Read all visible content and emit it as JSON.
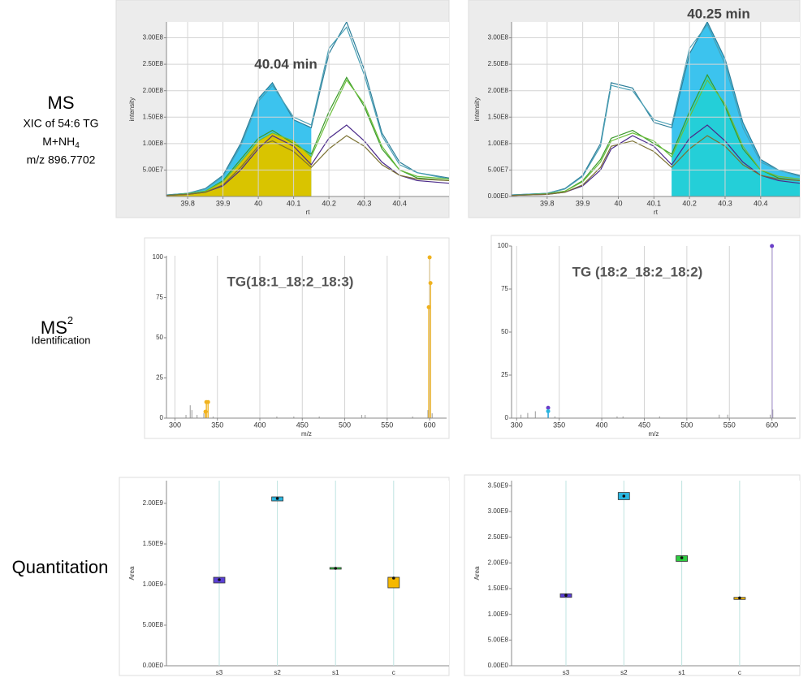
{
  "labels": {
    "ms": {
      "title": "MS",
      "xic": "XIC of 54:6 TG",
      "adduct": {
        "text": "M+NH",
        "sub": "4"
      },
      "mz": "m/z 896.7702"
    },
    "ms2": {
      "title": "MS",
      "sup": "2",
      "sub": "Identification"
    },
    "quant": "Quantitation"
  },
  "chart_data": [
    {
      "type": "line",
      "annotation": "40.04 min",
      "x_label": "rt",
      "y_label": "intensity",
      "x": [
        39.74,
        39.8,
        39.85,
        39.9,
        39.95,
        40.0,
        40.04,
        40.1,
        40.15,
        40.2,
        40.25,
        40.3,
        40.35,
        40.4,
        40.45,
        40.54
      ],
      "series": [
        {
          "color": "#2e7f9a",
          "fill": "#3cc3ee",
          "values": [
            3000000.0,
            6000000.0,
            15000000.0,
            40000000.0,
            100000000.0,
            185000000.0,
            215000000.0,
            145000000.0,
            130000000.0,
            270000000.0,
            330000000.0,
            240000000.0,
            120000000.0,
            65000000.0,
            45000000.0,
            35000000.0
          ]
        },
        {
          "color": "#4aa0b5",
          "values": [
            3000000.0,
            6000000.0,
            14000000.0,
            38000000.0,
            95000000.0,
            180000000.0,
            210000000.0,
            150000000.0,
            135000000.0,
            280000000.0,
            320000000.0,
            230000000.0,
            115000000.0,
            60000000.0,
            45000000.0,
            33000000.0
          ]
        },
        {
          "color": "#3a9a2a",
          "values": [
            2000000.0,
            5000000.0,
            10000000.0,
            30000000.0,
            70000000.0,
            110000000.0,
            125000000.0,
            100000000.0,
            80000000.0,
            160000000.0,
            225000000.0,
            170000000.0,
            90000000.0,
            50000000.0,
            35000000.0,
            30000000.0
          ]
        },
        {
          "color": "#6cbf3c",
          "fill": "#d9c400",
          "values": [
            2000000.0,
            5000000.0,
            10000000.0,
            28000000.0,
            65000000.0,
            105000000.0,
            120000000.0,
            105000000.0,
            75000000.0,
            150000000.0,
            220000000.0,
            175000000.0,
            95000000.0,
            50000000.0,
            38000000.0,
            33000000.0
          ]
        },
        {
          "color": "#4b2a8a",
          "values": [
            2000000.0,
            4000000.0,
            8000000.0,
            20000000.0,
            50000000.0,
            90000000.0,
            115000000.0,
            95000000.0,
            60000000.0,
            110000000.0,
            135000000.0,
            105000000.0,
            65000000.0,
            40000000.0,
            30000000.0,
            25000000.0
          ]
        },
        {
          "color": "#7a7030",
          "values": [
            2000000.0,
            4000000.0,
            8000000.0,
            22000000.0,
            55000000.0,
            95000000.0,
            105000000.0,
            85000000.0,
            55000000.0,
            90000000.0,
            115000000.0,
            95000000.0,
            60000000.0,
            40000000.0,
            33000000.0,
            30000000.0
          ]
        }
      ],
      "integration": [
        39.74,
        40.15
      ],
      "xlim": [
        39.74,
        40.54
      ],
      "xticks": [
        39.8,
        39.9,
        40,
        40.1,
        40.2,
        40.3,
        40.4
      ],
      "ylim": [
        0,
        330000000.0
      ],
      "yticks": [
        {
          "value": 50000000.0,
          "label": "5.00E7"
        },
        {
          "value": 100000000.0,
          "label": "1.00E8"
        },
        {
          "value": 150000000.0,
          "label": "1.50E8"
        },
        {
          "value": 200000000.0,
          "label": "2.00E8"
        },
        {
          "value": 250000000.0,
          "label": "2.50E8"
        },
        {
          "value": 300000000.0,
          "label": "3.00E8"
        }
      ],
      "grid": {
        "x": true,
        "y": true
      }
    },
    {
      "type": "line",
      "annotation": "40.25 min",
      "x_label": "rt",
      "y_label": "intensity",
      "x": [
        39.7,
        39.8,
        39.85,
        39.9,
        39.95,
        39.98,
        40.04,
        40.1,
        40.15,
        40.2,
        40.25,
        40.3,
        40.35,
        40.4,
        40.45,
        40.51
      ],
      "series": [
        {
          "color": "#2e7f9a",
          "fill": "#3cc3ee",
          "values": [
            3000000.0,
            6000000.0,
            15000000.0,
            40000000.0,
            100000000.0,
            215000000.0,
            205000000.0,
            140000000.0,
            130000000.0,
            270000000.0,
            330000000.0,
            260000000.0,
            140000000.0,
            70000000.0,
            50000000.0,
            40000000.0
          ]
        },
        {
          "color": "#4aa0b5",
          "values": [
            3000000.0,
            6000000.0,
            14000000.0,
            38000000.0,
            95000000.0,
            210000000.0,
            200000000.0,
            145000000.0,
            135000000.0,
            280000000.0,
            325000000.0,
            250000000.0,
            130000000.0,
            65000000.0,
            50000000.0,
            38000000.0
          ]
        },
        {
          "color": "#3a9a2a",
          "fill": "#24cfd8",
          "values": [
            2000000.0,
            5000000.0,
            10000000.0,
            30000000.0,
            70000000.0,
            110000000.0,
            125000000.0,
            100000000.0,
            80000000.0,
            160000000.0,
            230000000.0,
            170000000.0,
            90000000.0,
            50000000.0,
            35000000.0,
            30000000.0
          ]
        },
        {
          "color": "#6cbf3c",
          "values": [
            2000000.0,
            5000000.0,
            10000000.0,
            28000000.0,
            65000000.0,
            105000000.0,
            120000000.0,
            105000000.0,
            75000000.0,
            150000000.0,
            220000000.0,
            175000000.0,
            95000000.0,
            50000000.0,
            38000000.0,
            33000000.0
          ]
        },
        {
          "color": "#4b2a8a",
          "values": [
            2000000.0,
            4000000.0,
            8000000.0,
            20000000.0,
            50000000.0,
            90000000.0,
            115000000.0,
            95000000.0,
            60000000.0,
            110000000.0,
            135000000.0,
            105000000.0,
            65000000.0,
            40000000.0,
            30000000.0,
            25000000.0
          ]
        },
        {
          "color": "#7a7030",
          "values": [
            2000000.0,
            4000000.0,
            8000000.0,
            22000000.0,
            55000000.0,
            95000000.0,
            105000000.0,
            85000000.0,
            55000000.0,
            90000000.0,
            115000000.0,
            95000000.0,
            60000000.0,
            40000000.0,
            33000000.0,
            30000000.0
          ]
        }
      ],
      "integration": [
        40.15,
        40.51
      ],
      "xlim": [
        39.7,
        40.51
      ],
      "xticks": [
        39.8,
        39.9,
        40,
        40.1,
        40.2,
        40.3,
        40.4
      ],
      "ylim": [
        0,
        330000000.0
      ],
      "yticks": [
        {
          "value": 0,
          "label": "0.00E0"
        },
        {
          "value": 50000000.0,
          "label": "5.00E7"
        },
        {
          "value": 100000000.0,
          "label": "1.00E8"
        },
        {
          "value": 150000000.0,
          "label": "1.50E8"
        },
        {
          "value": 200000000.0,
          "label": "2.00E8"
        },
        {
          "value": 250000000.0,
          "label": "2.50E8"
        },
        {
          "value": 300000000.0,
          "label": "3.00E8"
        }
      ],
      "grid": {
        "x": true,
        "y": true
      }
    },
    {
      "type": "stem",
      "title": "TG(18:1_18:2_18:3)",
      "x_label": "m/z",
      "peaks": {
        "color": "#aaaaaa",
        "mz": [
          313,
          318,
          320,
          326,
          334,
          345,
          420,
          440,
          470,
          520,
          524,
          580,
          598,
          603
        ],
        "intensity": [
          2,
          8,
          5,
          2,
          3,
          1,
          1,
          1,
          1,
          2,
          2,
          1,
          5,
          3
        ]
      },
      "matched": {
        "mz": [
          336,
          337,
          339,
          599,
          600,
          601
        ],
        "intensity": [
          4,
          10,
          10,
          69,
          100,
          84
        ],
        "colors": [
          "#f0b21e",
          "#f0b21e",
          "#f0b21e",
          "#f0b21e",
          "#f0b21e",
          "#f0b21e"
        ]
      },
      "xlim": [
        290,
        620
      ],
      "xticks": [
        300,
        350,
        400,
        450,
        500,
        550,
        600
      ],
      "ylim": [
        0,
        101
      ],
      "yticks": [
        0,
        25,
        50,
        75,
        100
      ],
      "grid": {
        "x": true,
        "y": false
      }
    },
    {
      "type": "stem",
      "title": "TG (18:2_18:2_18:2)",
      "x_label": "m/z",
      "peaks": {
        "color": "#aaaaaa",
        "mz": [
          305,
          313,
          322,
          345,
          418,
          425,
          468,
          538,
          548,
          598,
          601
        ],
        "intensity": [
          2,
          3,
          4,
          1,
          1,
          1,
          1,
          2,
          2,
          2,
          5
        ]
      },
      "matched": {
        "mz": [
          337,
          337,
          600
        ],
        "intensity": [
          6,
          4,
          100
        ],
        "colors": [
          "#6a3fc8",
          "#29b6e0",
          "#6a3fc8"
        ]
      },
      "xlim": [
        294,
        628
      ],
      "xticks": [
        300,
        350,
        400,
        450,
        500,
        550,
        600
      ],
      "ylim": [
        0,
        100
      ],
      "yticks": [
        0,
        25,
        50,
        75,
        100
      ],
      "grid": {
        "x": true,
        "y": false
      }
    },
    {
      "type": "box",
      "y_label": "Area",
      "categories": [
        "s3",
        "s2",
        "s1",
        "c"
      ],
      "values": [
        1060000000.0,
        2060000000.0,
        1200000000.0,
        1080000000.0
      ],
      "box_low": [
        1020000000.0,
        2030000000.0,
        1190000000.0,
        960000000.0
      ],
      "box_high": [
        1090000000.0,
        2080000000.0,
        1210000000.0,
        1090000000.0
      ],
      "colors": [
        "#5b3fd6",
        "#29b6e0",
        "#2ecc40",
        "#f5b800"
      ],
      "ylim": [
        0,
        2280000000.0
      ],
      "yticks": [
        {
          "value": 0,
          "label": "0.00E0"
        },
        {
          "value": 500000000.0,
          "label": "5.00E8"
        },
        {
          "value": 1000000000.0,
          "label": "1.00E9"
        },
        {
          "value": 1500000000.0,
          "label": "1.50E9"
        },
        {
          "value": 2000000000.0,
          "label": "2.00E9"
        }
      ],
      "grid": {
        "x": true,
        "y": false
      }
    },
    {
      "type": "box",
      "y_label": "Area",
      "categories": [
        "s3",
        "s2",
        "s1",
        "c"
      ],
      "values": [
        1370000000.0,
        3300000000.0,
        2100000000.0,
        1320000000.0
      ],
      "box_low": [
        1330000000.0,
        3230000000.0,
        2030000000.0,
        1290000000.0
      ],
      "box_high": [
        1400000000.0,
        3370000000.0,
        2140000000.0,
        1330000000.0
      ],
      "colors": [
        "#5b3fd6",
        "#29b6e0",
        "#2ecc40",
        "#f5b800"
      ],
      "ylim": [
        0,
        3600000000.0
      ],
      "yticks": [
        {
          "value": 0,
          "label": "0.00E0"
        },
        {
          "value": 500000000.0,
          "label": "5.00E8"
        },
        {
          "value": 1000000000.0,
          "label": "1.00E9"
        },
        {
          "value": 1500000000.0,
          "label": "1.50E9"
        },
        {
          "value": 2000000000.0,
          "label": "2.00E9"
        },
        {
          "value": 2500000000.0,
          "label": "2.50E9"
        },
        {
          "value": 3000000000.0,
          "label": "3.00E9"
        },
        {
          "value": 3500000000.0,
          "label": "3.50E9"
        }
      ],
      "grid": {
        "x": true,
        "y": false
      }
    }
  ]
}
